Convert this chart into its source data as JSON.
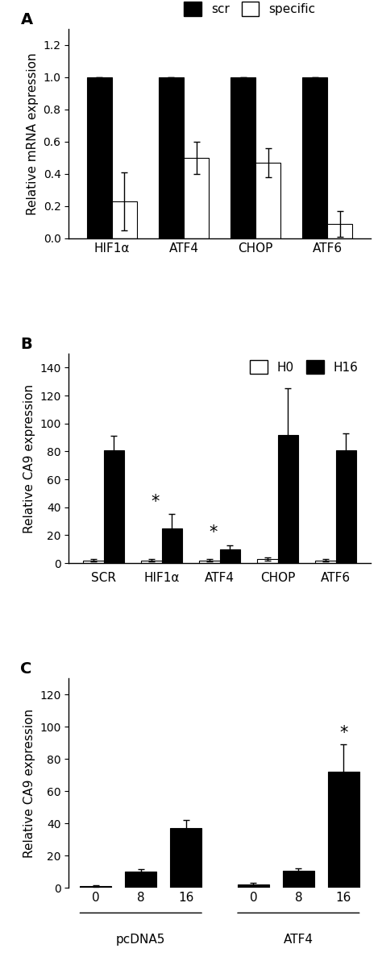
{
  "panel_A": {
    "categories": [
      "HIF1α",
      "ATF4",
      "CHOP",
      "ATF6"
    ],
    "scr_values": [
      1.0,
      1.0,
      1.0,
      1.0
    ],
    "scr_errors": [
      0.0,
      0.0,
      0.0,
      0.0
    ],
    "specific_values": [
      0.23,
      0.5,
      0.47,
      0.09
    ],
    "specific_errors": [
      0.18,
      0.1,
      0.09,
      0.08
    ],
    "ylabel": "Relative mRNA expression",
    "ylim": [
      0,
      1.3
    ],
    "yticks": [
      0.0,
      0.2,
      0.4,
      0.6,
      0.8,
      1.0,
      1.2
    ],
    "legend_labels": [
      "scr",
      "specific"
    ],
    "panel_label": "A"
  },
  "panel_B": {
    "categories": [
      "SCR",
      "HIF1α",
      "ATF4",
      "CHOP",
      "ATF6"
    ],
    "h0_values": [
      2.0,
      2.0,
      2.0,
      3.0,
      2.0
    ],
    "h0_errors": [
      1.0,
      1.0,
      1.0,
      1.0,
      1.0
    ],
    "h16_values": [
      81.0,
      25.0,
      10.0,
      92.0,
      81.0
    ],
    "h16_errors": [
      10.0,
      10.0,
      3.0,
      33.0,
      12.0
    ],
    "ylabel": "Relative CA9 expression",
    "ylim": [
      0,
      150
    ],
    "yticks": [
      0,
      20,
      40,
      60,
      80,
      100,
      120,
      140
    ],
    "legend_labels": [
      "H0",
      "H16"
    ],
    "panel_label": "B",
    "significance": [
      false,
      true,
      true,
      false,
      false
    ]
  },
  "panel_C": {
    "group_labels": [
      "pcDNA5",
      "ATF4"
    ],
    "values": [
      1.0,
      10.0,
      37.0,
      2.0,
      10.5,
      72.0
    ],
    "errors": [
      0.5,
      1.5,
      5.0,
      1.0,
      1.5,
      17.0
    ],
    "ylabel": "Relative CA9 expression",
    "ylim": [
      0,
      130
    ],
    "yticks": [
      0,
      20,
      40,
      60,
      80,
      100,
      120
    ],
    "panel_label": "C",
    "significance": [
      false,
      false,
      false,
      false,
      false,
      true
    ],
    "tick_labels": [
      "0",
      "8",
      "16",
      "0",
      "8",
      "16"
    ]
  },
  "bar_width": 0.35,
  "black_color": "#000000",
  "white_color": "#ffffff",
  "edge_color": "#000000",
  "fontsize": 11,
  "label_fontsize": 11,
  "tick_fontsize": 10,
  "panel_label_fontsize": 14
}
